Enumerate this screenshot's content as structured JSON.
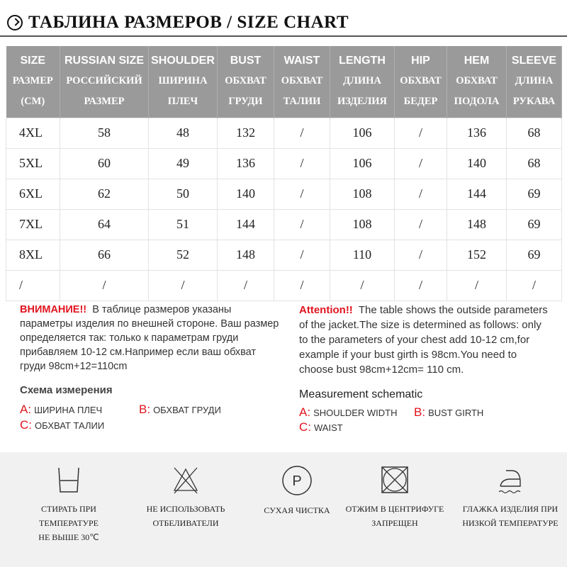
{
  "title": "ТАБЛИНА РАЗМЕРОВ / SIZE CHART",
  "table": {
    "headers": [
      {
        "en": "SIZE",
        "ru1": "РАЗМЕР",
        "ru2": "(CM)"
      },
      {
        "en": "RUSSIAN SIZE",
        "ru1": "РОССИЙСКИЙ",
        "ru2": "РАЗМЕР"
      },
      {
        "en": "SHOULDER",
        "ru1": "ШИРИНА",
        "ru2": "ПЛЕЧ"
      },
      {
        "en": "BUST",
        "ru1": "ОБХВАТ",
        "ru2": "ГРУДИ"
      },
      {
        "en": "WAIST",
        "ru1": "ОБХВАТ",
        "ru2": "ТАЛИИ"
      },
      {
        "en": "LENGTH",
        "ru1": "ДЛИНА",
        "ru2": "ИЗДЕЛИЯ"
      },
      {
        "en": "HIP",
        "ru1": "ОБХВАТ",
        "ru2": "БЕДЕР"
      },
      {
        "en": "HEM",
        "ru1": "ОБХВАТ",
        "ru2": "ПОДОЛА"
      },
      {
        "en": "SLEEVE",
        "ru1": "ДЛИНА",
        "ru2": "РУКАВА"
      }
    ],
    "rows": [
      [
        "4XL",
        "58",
        "48",
        "132",
        "/",
        "106",
        "/",
        "136",
        "68"
      ],
      [
        "5XL",
        "60",
        "49",
        "136",
        "/",
        "106",
        "/",
        "140",
        "68"
      ],
      [
        "6XL",
        "62",
        "50",
        "140",
        "/",
        "108",
        "/",
        "144",
        "69"
      ],
      [
        "7XL",
        "64",
        "51",
        "144",
        "/",
        "108",
        "/",
        "148",
        "69"
      ],
      [
        "8XL",
        "66",
        "52",
        "148",
        "/",
        "110",
        "/",
        "152",
        "69"
      ],
      [
        "/",
        "/",
        "/",
        "/",
        "/",
        "/",
        "/",
        "/",
        "/"
      ]
    ]
  },
  "notes": {
    "ru": {
      "warn": "ВНИМАНИЕ!!",
      "text": "В таблице размеров указаны параметры изделия по внешней стороне. Ваш размер определяется так: только к параметрам груди прибавляем 10-12 см.Например если ваш обхват груди 98cm+12=110cm",
      "schematic": "Схема измерения",
      "a": "A:",
      "a_text": "ШИРИНА ПЛЕЧ",
      "b": "B:",
      "b_text": "ОБХВАТ ГРУДИ",
      "c": "C:",
      "c_text": "ОБХВАТ ТАЛИИ"
    },
    "en": {
      "warn": "Attention!!",
      "text": "The table shows the outside parameters of the jacket.The size is determined as follows: only to the parameters of your chest add 10-12 cm,for example if your bust girth is 98cm.You need to choose bust 98cm+12cm= 110 cm.",
      "schematic": "Measurement schematic",
      "a": "A:",
      "a_text": "SHOULDER WIDTH",
      "b": "B:",
      "b_text": "BUST GIRTH",
      "c": "C:",
      "c_text": "WAIST"
    }
  },
  "care": [
    {
      "icon": "wash-30-icon",
      "l1": "СТИРАТЬ ПРИ ТЕМПЕРАТУРЕ",
      "l2": "НЕ ВЫШЕ 30℃"
    },
    {
      "icon": "no-bleach-icon",
      "l1": "НЕ ИСПОЛЬЗОВАТЬ",
      "l2": "ОТБЕЛИВАТЕЛИ"
    },
    {
      "icon": "dry-clean-p-icon",
      "l1": "СУХАЯ ЧИСТКА",
      "l2": ""
    },
    {
      "icon": "no-tumble-dry-icon",
      "l1": "ОТЖИМ В ЦЕНТРИФУГЕ",
      "l2": "ЗАПРЕЩЕН"
    },
    {
      "icon": "iron-low-icon",
      "l1": "ГЛАЖКА ИЗДЕЛИЯ ПРИ",
      "l2": "НИЗКОЙ ТЕМПЕРАТУРЕ"
    }
  ],
  "colors": {
    "header_bg": "#9a9a9a",
    "accent_red": "#e0141e",
    "care_bg": "#f1f1f1"
  }
}
